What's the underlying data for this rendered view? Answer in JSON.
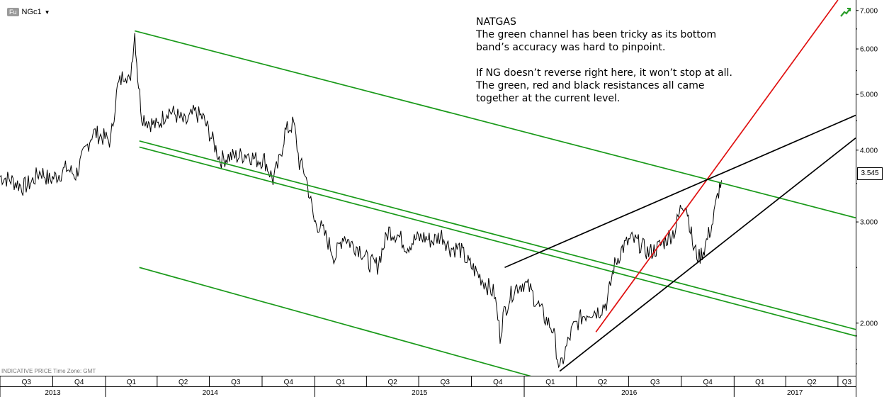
{
  "header": {
    "source_tag": "Fu",
    "symbol": "NGc1"
  },
  "footnote": {
    "text": "INDICATIVE PRICE   Time Zone: GMT"
  },
  "annotation": {
    "title": "NATGAS",
    "para1": "The green channel has been tricky as its bottom band’s accuracy was hard to pinpoint.",
    "para2": "If NG doesn’t reverse right here, it won’t stop at all. The green, red and black resistances all came together at the current level."
  },
  "current_price_label": "3.545",
  "colors": {
    "price": "#000000",
    "channel": "#1a9a1a",
    "red_trend": "#e01010",
    "black_trend": "#000000",
    "icon": "#2a9d2a"
  },
  "icons": [
    "trend-up-icon",
    "dropdown-caret-icon"
  ],
  "chart_data": {
    "type": "line",
    "scale": "log",
    "ylim": [
      1.62,
      7.3
    ],
    "xlim": [
      "2013-07-01",
      "2017-08-01"
    ],
    "ytick_labels": [
      "2.000",
      "3.000",
      "4.000",
      "5.000",
      "6.000",
      "7.000"
    ],
    "yticks": [
      2,
      3,
      4,
      5,
      6,
      7
    ],
    "quarter_ticks": [
      {
        "label": "Q3",
        "start": "2013-07-01"
      },
      {
        "label": "Q4",
        "start": "2013-10-01"
      },
      {
        "label": "Q1",
        "start": "2014-01-01"
      },
      {
        "label": "Q2",
        "start": "2014-04-01"
      },
      {
        "label": "Q3",
        "start": "2014-07-01"
      },
      {
        "label": "Q4",
        "start": "2014-10-01"
      },
      {
        "label": "Q1",
        "start": "2015-01-01"
      },
      {
        "label": "Q2",
        "start": "2015-04-01"
      },
      {
        "label": "Q3",
        "start": "2015-07-01"
      },
      {
        "label": "Q4",
        "start": "2015-10-01"
      },
      {
        "label": "Q1",
        "start": "2016-01-01"
      },
      {
        "label": "Q2",
        "start": "2016-04-01"
      },
      {
        "label": "Q3",
        "start": "2016-07-01"
      },
      {
        "label": "Q4",
        "start": "2016-10-01"
      },
      {
        "label": "Q1",
        "start": "2017-01-01"
      },
      {
        "label": "Q2",
        "start": "2017-04-01"
      },
      {
        "label": "Q3",
        "start": "2017-07-01"
      }
    ],
    "year_ticks": [
      {
        "label": "2013",
        "start": "2013-07-01"
      },
      {
        "label": "2014",
        "start": "2014-01-01"
      },
      {
        "label": "2015",
        "start": "2015-01-01"
      },
      {
        "label": "2016",
        "start": "2016-01-01"
      },
      {
        "label": "2017",
        "start": "2017-01-01"
      }
    ],
    "series": [
      {
        "name": "NGc1",
        "kind": "price",
        "points": [
          [
            "2013-07-01",
            3.6
          ],
          [
            "2013-07-20",
            3.55
          ],
          [
            "2013-08-10",
            3.45
          ],
          [
            "2013-08-25",
            3.52
          ],
          [
            "2013-09-10",
            3.68
          ],
          [
            "2013-09-25",
            3.55
          ],
          [
            "2013-10-10",
            3.62
          ],
          [
            "2013-10-25",
            3.72
          ],
          [
            "2013-11-10",
            3.62
          ],
          [
            "2013-11-25",
            3.95
          ],
          [
            "2013-12-10",
            4.3
          ],
          [
            "2013-12-31",
            4.2
          ],
          [
            "2014-01-10",
            4.15
          ],
          [
            "2014-01-22",
            5.15
          ],
          [
            "2014-02-05",
            5.5
          ],
          [
            "2014-02-12",
            5.2
          ],
          [
            "2014-02-21",
            6.4
          ],
          [
            "2014-02-26",
            5.4
          ],
          [
            "2014-03-05",
            4.6
          ],
          [
            "2014-03-15",
            4.5
          ],
          [
            "2014-04-01",
            4.4
          ],
          [
            "2014-04-20",
            4.7
          ],
          [
            "2014-05-05",
            4.6
          ],
          [
            "2014-05-20",
            4.45
          ],
          [
            "2014-06-05",
            4.65
          ],
          [
            "2014-06-20",
            4.55
          ],
          [
            "2014-07-05",
            4.2
          ],
          [
            "2014-07-20",
            3.85
          ],
          [
            "2014-08-05",
            3.9
          ],
          [
            "2014-08-20",
            3.9
          ],
          [
            "2014-09-05",
            3.95
          ],
          [
            "2014-09-20",
            3.85
          ],
          [
            "2014-10-05",
            3.85
          ],
          [
            "2014-10-20",
            3.55
          ],
          [
            "2014-11-01",
            3.85
          ],
          [
            "2014-11-10",
            4.3
          ],
          [
            "2014-11-25",
            4.45
          ],
          [
            "2014-12-05",
            3.8
          ],
          [
            "2014-12-15",
            3.65
          ],
          [
            "2014-12-31",
            3.0
          ],
          [
            "2015-01-10",
            2.95
          ],
          [
            "2015-01-22",
            2.8
          ],
          [
            "2015-02-05",
            2.6
          ],
          [
            "2015-02-20",
            2.85
          ],
          [
            "2015-03-05",
            2.75
          ],
          [
            "2015-03-20",
            2.7
          ],
          [
            "2015-04-05",
            2.55
          ],
          [
            "2015-04-20",
            2.52
          ],
          [
            "2015-05-10",
            2.9
          ],
          [
            "2015-05-25",
            2.85
          ],
          [
            "2015-06-10",
            2.72
          ],
          [
            "2015-06-25",
            2.8
          ],
          [
            "2015-07-10",
            2.82
          ],
          [
            "2015-07-25",
            2.78
          ],
          [
            "2015-08-10",
            2.85
          ],
          [
            "2015-08-25",
            2.7
          ],
          [
            "2015-09-10",
            2.7
          ],
          [
            "2015-09-25",
            2.55
          ],
          [
            "2015-10-10",
            2.45
          ],
          [
            "2015-10-25",
            2.35
          ],
          [
            "2015-11-10",
            2.25
          ],
          [
            "2015-11-20",
            1.9
          ],
          [
            "2015-11-25",
            2.05
          ],
          [
            "2015-12-05",
            2.2
          ],
          [
            "2015-12-15",
            2.3
          ],
          [
            "2015-12-31",
            2.35
          ],
          [
            "2016-01-10",
            2.3
          ],
          [
            "2016-01-20",
            2.2
          ],
          [
            "2016-02-05",
            2.05
          ],
          [
            "2016-02-20",
            1.95
          ],
          [
            "2016-03-03",
            1.65
          ],
          [
            "2016-03-15",
            1.82
          ],
          [
            "2016-03-25",
            1.95
          ],
          [
            "2016-04-10",
            2.05
          ],
          [
            "2016-04-25",
            2.1
          ],
          [
            "2016-05-10",
            2.1
          ],
          [
            "2016-05-25",
            2.18
          ],
          [
            "2016-06-05",
            2.5
          ],
          [
            "2016-06-20",
            2.7
          ],
          [
            "2016-07-05",
            2.8
          ],
          [
            "2016-07-20",
            2.75
          ],
          [
            "2016-08-05",
            2.65
          ],
          [
            "2016-08-20",
            2.7
          ],
          [
            "2016-09-05",
            2.8
          ],
          [
            "2016-09-20",
            2.9
          ],
          [
            "2016-10-01",
            3.2
          ],
          [
            "2016-10-08",
            3.25
          ],
          [
            "2016-10-15",
            3.0
          ],
          [
            "2016-10-22",
            2.7
          ],
          [
            "2016-11-01",
            2.6
          ],
          [
            "2016-11-10",
            2.7
          ],
          [
            "2016-11-25",
            3.0
          ],
          [
            "2016-12-05",
            3.4
          ],
          [
            "2016-12-10",
            3.545
          ]
        ]
      },
      {
        "name": "green channel upper",
        "kind": "line",
        "color": "channel",
        "points": [
          [
            "2014-02-21",
            6.45
          ],
          [
            "2017-08-01",
            3.05
          ]
        ]
      },
      {
        "name": "green channel lower",
        "kind": "line",
        "color": "channel",
        "points": [
          [
            "2014-03-01",
            2.5
          ],
          [
            "2016-07-01",
            1.45
          ]
        ]
      },
      {
        "name": "green mid line 1",
        "kind": "line",
        "color": "channel",
        "points": [
          [
            "2014-03-01",
            4.15
          ],
          [
            "2017-08-01",
            1.95
          ]
        ]
      },
      {
        "name": "green mid line 2",
        "kind": "line",
        "color": "channel",
        "points": [
          [
            "2014-03-01",
            4.05
          ],
          [
            "2017-08-01",
            1.9
          ]
        ]
      },
      {
        "name": "red trendline",
        "kind": "line",
        "color": "red_trend",
        "points": [
          [
            "2016-05-05",
            1.93
          ],
          [
            "2017-07-01",
            7.3
          ]
        ]
      },
      {
        "name": "black resistance",
        "kind": "line",
        "color": "black_trend",
        "points": [
          [
            "2015-11-28",
            2.5
          ],
          [
            "2017-08-01",
            4.6
          ]
        ]
      },
      {
        "name": "black support",
        "kind": "line",
        "color": "black_trend",
        "points": [
          [
            "2016-03-03",
            1.65
          ],
          [
            "2017-08-01",
            4.2
          ]
        ]
      }
    ]
  }
}
